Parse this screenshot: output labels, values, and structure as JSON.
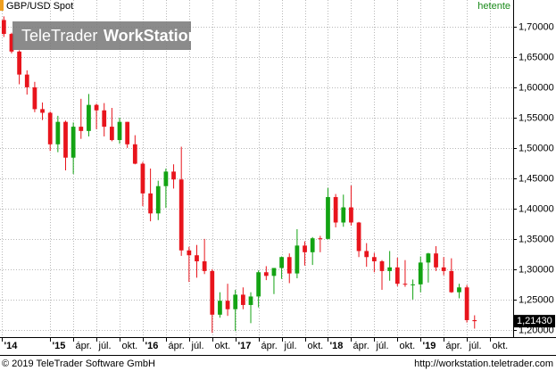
{
  "header": {
    "symbol": "GBP/USD Spot",
    "interval": "hetente"
  },
  "watermark": {
    "brand": "TeleTrader",
    "product": "WorkStation"
  },
  "footer": {
    "copyright": "© 2019 TeleTrader Software GmbH",
    "url": "http://workstation.teletrader.com"
  },
  "chart_data": {
    "type": "candlestick",
    "x": [
      -6,
      -5,
      -4,
      -3,
      -2,
      -1,
      0,
      1,
      2,
      3,
      4,
      5,
      6,
      7,
      8,
      9,
      10,
      11,
      12,
      13,
      14,
      15,
      16,
      17,
      18,
      19,
      20,
      21,
      22,
      23,
      24,
      25,
      26,
      27,
      28,
      29,
      30,
      31,
      32,
      33,
      34,
      35,
      36,
      37,
      38,
      39,
      40,
      41,
      42,
      43,
      44,
      45,
      46,
      47,
      48,
      49,
      50,
      51,
      52,
      53,
      54,
      55
    ],
    "open": [
      1.711,
      1.688,
      1.659,
      1.621,
      1.6,
      1.564,
      1.558,
      1.506,
      1.543,
      1.484,
      1.535,
      1.528,
      1.571,
      1.562,
      1.535,
      1.513,
      1.543,
      1.506,
      1.474,
      1.425,
      1.392,
      1.437,
      1.461,
      1.448,
      1.331,
      1.323,
      1.313,
      1.297,
      1.225,
      1.248,
      1.234,
      1.258,
      1.241,
      1.255,
      1.295,
      1.289,
      1.302,
      1.32,
      1.293,
      1.339,
      1.328,
      1.351,
      1.35,
      1.419,
      1.377,
      1.402,
      1.377,
      1.33,
      1.32,
      1.313,
      1.297,
      1.303,
      1.276,
      1.275,
      1.275,
      1.311,
      1.326,
      1.303,
      1.297,
      1.262,
      1.27,
      1.216
    ],
    "high": [
      1.717,
      1.69,
      1.661,
      1.628,
      1.609,
      1.575,
      1.56,
      1.553,
      1.545,
      1.542,
      1.581,
      1.589,
      1.573,
      1.574,
      1.566,
      1.55,
      1.543,
      1.521,
      1.477,
      1.466,
      1.446,
      1.466,
      1.473,
      1.502,
      1.337,
      1.34,
      1.35,
      1.3,
      1.262,
      1.276,
      1.266,
      1.27,
      1.262,
      1.298,
      1.305,
      1.302,
      1.321,
      1.326,
      1.366,
      1.346,
      1.353,
      1.355,
      1.434,
      1.424,
      1.423,
      1.438,
      1.378,
      1.343,
      1.327,
      1.315,
      1.33,
      1.319,
      1.315,
      1.283,
      1.321,
      1.327,
      1.338,
      1.32,
      1.318,
      1.276,
      1.274,
      1.224
    ],
    "low": [
      1.683,
      1.656,
      1.605,
      1.588,
      1.559,
      1.546,
      1.495,
      1.493,
      1.463,
      1.457,
      1.515,
      1.519,
      1.531,
      1.519,
      1.511,
      1.507,
      1.5,
      1.473,
      1.404,
      1.379,
      1.381,
      1.401,
      1.433,
      1.322,
      1.279,
      1.286,
      1.292,
      1.195,
      1.22,
      1.223,
      1.198,
      1.234,
      1.211,
      1.237,
      1.282,
      1.259,
      1.284,
      1.277,
      1.285,
      1.306,
      1.307,
      1.328,
      1.349,
      1.369,
      1.37,
      1.372,
      1.32,
      1.304,
      1.295,
      1.266,
      1.281,
      1.272,
      1.271,
      1.25,
      1.262,
      1.278,
      1.297,
      1.29,
      1.261,
      1.252,
      1.212,
      1.202
    ],
    "close": [
      1.688,
      1.659,
      1.621,
      1.6,
      1.564,
      1.558,
      1.506,
      1.543,
      1.484,
      1.535,
      1.528,
      1.571,
      1.562,
      1.535,
      1.513,
      1.543,
      1.506,
      1.474,
      1.425,
      1.392,
      1.437,
      1.461,
      1.448,
      1.331,
      1.323,
      1.313,
      1.297,
      1.225,
      1.248,
      1.234,
      1.258,
      1.241,
      1.255,
      1.295,
      1.289,
      1.302,
      1.32,
      1.293,
      1.339,
      1.328,
      1.351,
      1.35,
      1.419,
      1.377,
      1.402,
      1.377,
      1.33,
      1.32,
      1.313,
      1.297,
      1.303,
      1.276,
      1.275,
      1.275,
      1.311,
      1.326,
      1.303,
      1.297,
      1.262,
      1.27,
      1.216,
      1.2143
    ],
    "up_color": "#13a313",
    "down_color": "#e8141c",
    "xlim": [
      -6.5,
      60
    ],
    "ylim": [
      1.188,
      1.744
    ],
    "xticks": [
      {
        "value": -6.3,
        "label": "'14"
      },
      {
        "value": 0,
        "label": "'15"
      },
      {
        "value": 3,
        "label": "ápr."
      },
      {
        "value": 6,
        "label": "júl."
      },
      {
        "value": 9,
        "label": "okt."
      },
      {
        "value": 12,
        "label": "'16"
      },
      {
        "value": 15,
        "label": "ápr."
      },
      {
        "value": 18,
        "label": "júl."
      },
      {
        "value": 21,
        "label": "okt."
      },
      {
        "value": 24,
        "label": "'17"
      },
      {
        "value": 27,
        "label": "ápr."
      },
      {
        "value": 30,
        "label": "júl."
      },
      {
        "value": 33,
        "label": "okt."
      },
      {
        "value": 36,
        "label": "'18"
      },
      {
        "value": 39,
        "label": "ápr."
      },
      {
        "value": 42,
        "label": "júl."
      },
      {
        "value": 45,
        "label": "okt."
      },
      {
        "value": 48,
        "label": "'19"
      },
      {
        "value": 51,
        "label": "ápr."
      },
      {
        "value": 54,
        "label": "júl."
      },
      {
        "value": 57,
        "label": "okt."
      }
    ],
    "yticks": [
      {
        "value": 1.2,
        "label": "1,20000"
      },
      {
        "value": 1.25,
        "label": "1,25000"
      },
      {
        "value": 1.3,
        "label": "1,30000"
      },
      {
        "value": 1.35,
        "label": "1,35000"
      },
      {
        "value": 1.4,
        "label": "1,40000"
      },
      {
        "value": 1.45,
        "label": "1,45000"
      },
      {
        "value": 1.5,
        "label": "1,50000"
      },
      {
        "value": 1.55,
        "label": "1,55000"
      },
      {
        "value": 1.6,
        "label": "1,60000"
      },
      {
        "value": 1.65,
        "label": "1,65000"
      },
      {
        "value": 1.7,
        "label": "1,70000"
      }
    ],
    "last_price": {
      "value": 1.2143,
      "label": "1,21430"
    },
    "grid": true
  }
}
